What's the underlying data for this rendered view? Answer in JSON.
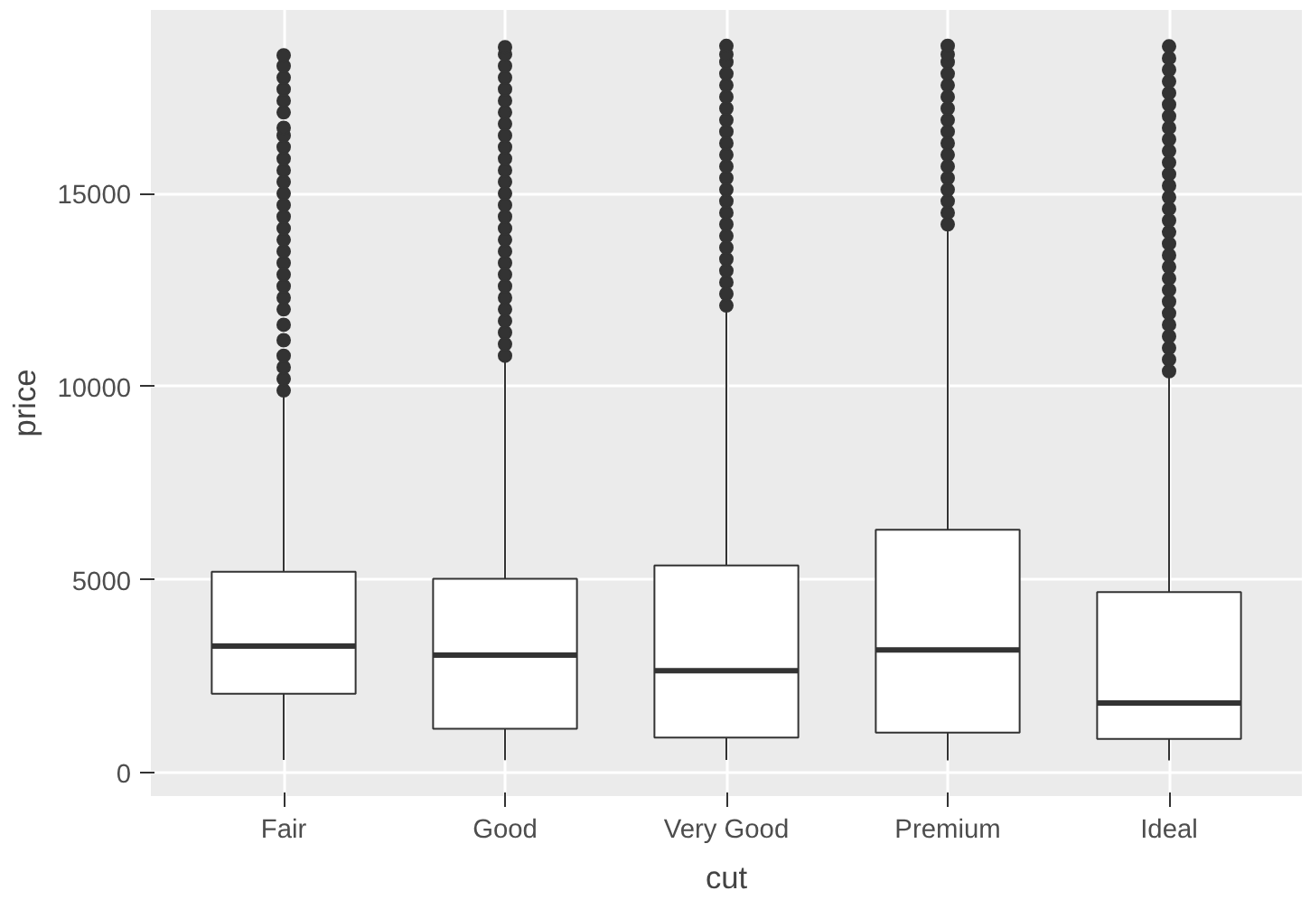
{
  "chart_data": {
    "type": "box",
    "xlabel": "cut",
    "ylabel": "price",
    "categories": [
      "Fair",
      "Good",
      "Very Good",
      "Premium",
      "Ideal"
    ],
    "ylim": [
      -600,
      19750
    ],
    "yticks": [
      0,
      5000,
      10000,
      15000
    ],
    "grid": true,
    "marker": "circle",
    "boxes": [
      {
        "low": 337,
        "q1": 2050,
        "median": 3282,
        "q3": 5206,
        "high": 9800,
        "outliers": [
          9900,
          10200,
          10500,
          10800,
          11200,
          11600,
          12000,
          12300,
          12600,
          12900,
          13200,
          13500,
          13800,
          14100,
          14400,
          14700,
          15000,
          15300,
          15600,
          15900,
          16200,
          16500,
          16700,
          17100,
          17400,
          17700,
          18000,
          18300,
          18574
        ]
      },
      {
        "low": 327,
        "q1": 1145,
        "median": 3050,
        "q3": 5028,
        "high": 10750,
        "outliers": [
          10800,
          11100,
          11400,
          11700,
          12000,
          12300,
          12600,
          12900,
          13200,
          13500,
          13800,
          14100,
          14400,
          14700,
          15000,
          15300,
          15600,
          15900,
          16200,
          16500,
          16800,
          17100,
          17400,
          17700,
          18000,
          18300,
          18600,
          18788
        ]
      },
      {
        "low": 336,
        "q1": 912,
        "median": 2648,
        "q3": 5373,
        "high": 12050,
        "outliers": [
          12100,
          12400,
          12700,
          13000,
          13300,
          13600,
          13900,
          14200,
          14500,
          14800,
          15100,
          15400,
          15700,
          16000,
          16300,
          16600,
          16900,
          17200,
          17500,
          17800,
          18100,
          18400,
          18600,
          18818
        ]
      },
      {
        "low": 326,
        "q1": 1046,
        "median": 3185,
        "q3": 6296,
        "high": 14150,
        "outliers": [
          14200,
          14500,
          14800,
          15100,
          15400,
          15700,
          16000,
          16300,
          16600,
          16900,
          17200,
          17500,
          17800,
          18100,
          18400,
          18600,
          18823
        ]
      },
      {
        "low": 326,
        "q1": 878,
        "median": 1810,
        "q3": 4678,
        "high": 10350,
        "outliers": [
          10400,
          10700,
          11000,
          11300,
          11600,
          11900,
          12200,
          12500,
          12800,
          13100,
          13400,
          13700,
          14000,
          14300,
          14600,
          14900,
          15200,
          15500,
          15800,
          16100,
          16400,
          16700,
          17000,
          17300,
          17600,
          17900,
          18200,
          18500,
          18806
        ]
      }
    ]
  }
}
